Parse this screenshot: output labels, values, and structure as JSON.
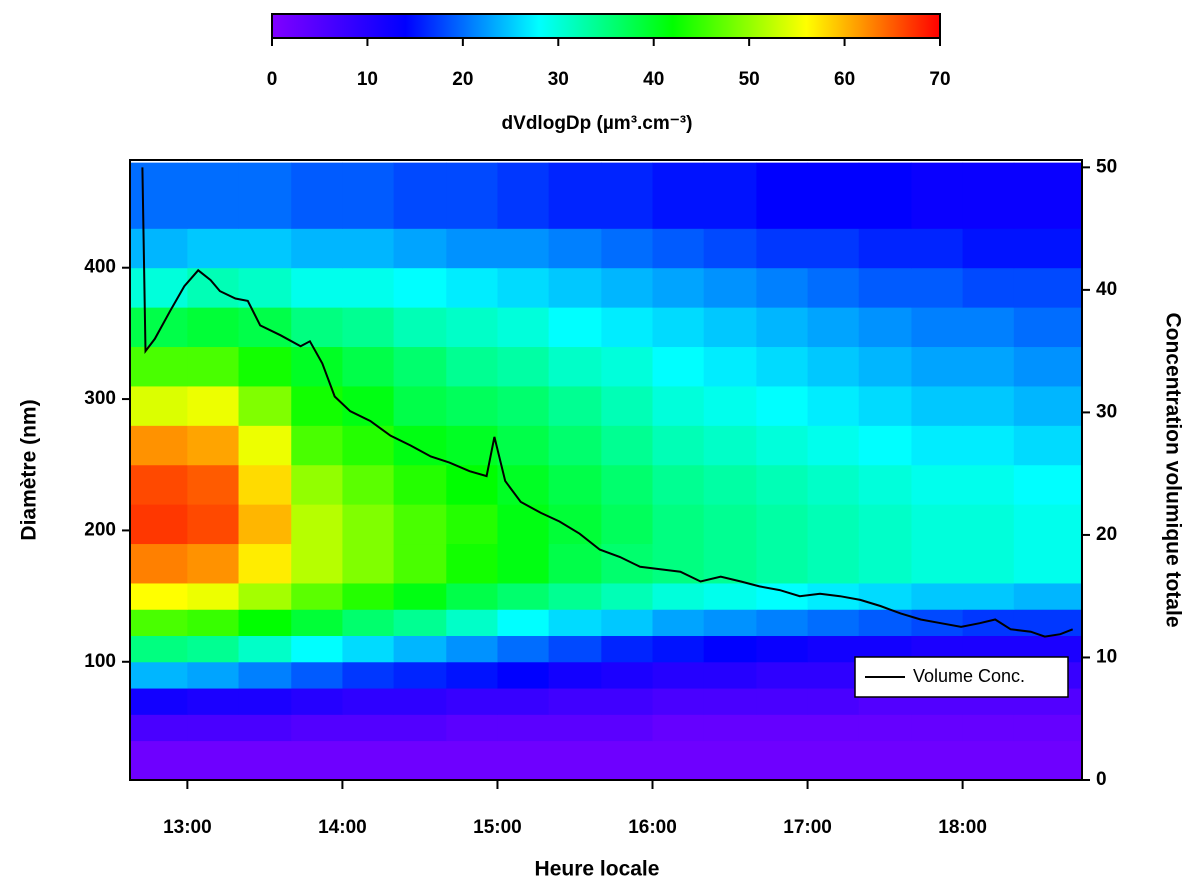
{
  "chart_data": {
    "type": "heatmap",
    "colorbar_label": "dVdlogDp (µm³.cm⁻³)",
    "xlabel": "Heure locale",
    "ylabel": "Diamètre (nm)",
    "y2label": "Concentration volumique totale",
    "colorscale": [
      "#8000ff",
      "#0000ff",
      "#00ffff",
      "#00ff00",
      "#ffff00",
      "#ff0000"
    ],
    "zlim": [
      0,
      70
    ],
    "zticks": [
      0,
      10,
      20,
      30,
      40,
      50,
      60,
      70
    ],
    "xlim": [
      12.63,
      18.77
    ],
    "xticks": [
      {
        "value": 13,
        "label": "13:00"
      },
      {
        "value": 14,
        "label": "14:00"
      },
      {
        "value": 15,
        "label": "15:00"
      },
      {
        "value": 16,
        "label": "16:00"
      },
      {
        "value": 17,
        "label": "17:00"
      },
      {
        "value": 18,
        "label": "18:00"
      }
    ],
    "ylim": [
      10,
      482
    ],
    "yticks": [
      100,
      200,
      300,
      400
    ],
    "y2lim": [
      0,
      50.6
    ],
    "y2ticks": [
      0,
      10,
      20,
      30,
      40,
      50
    ],
    "x_edges": [
      12.63,
      13.0,
      13.33,
      13.67,
      14.0,
      14.33,
      14.67,
      15.0,
      15.33,
      15.67,
      16.0,
      16.33,
      16.67,
      17.0,
      17.33,
      17.67,
      18.0,
      18.33,
      18.77
    ],
    "y_edges": [
      10,
      40,
      60,
      80,
      100,
      120,
      140,
      160,
      190,
      220,
      250,
      280,
      310,
      340,
      370,
      400,
      430,
      480
    ],
    "z": [
      [
        2,
        2,
        2,
        2,
        2,
        2,
        2,
        2,
        2,
        2,
        2,
        2,
        2,
        2,
        2,
        2,
        2,
        2
      ],
      [
        6,
        6,
        6,
        5,
        5,
        5,
        4,
        4,
        4,
        4,
        3,
        3,
        3,
        3,
        3,
        3,
        3,
        3
      ],
      [
        12,
        11,
        11,
        10,
        9,
        9,
        8,
        8,
        7,
        7,
        6,
        6,
        6,
        6,
        5,
        5,
        5,
        5
      ],
      [
        24,
        23,
        21,
        19,
        17,
        16,
        15,
        14,
        12,
        11,
        10,
        10,
        9,
        9,
        9,
        8,
        8,
        8
      ],
      [
        35,
        34,
        31,
        28,
        26,
        24,
        22,
        20,
        18,
        16,
        15,
        14,
        13,
        12,
        12,
        11,
        11,
        11
      ],
      [
        46,
        45,
        42,
        39,
        36,
        34,
        31,
        28,
        26,
        25,
        23,
        22,
        21,
        20,
        19,
        18,
        17,
        17
      ],
      [
        56,
        55,
        51,
        47,
        44,
        41,
        38,
        36,
        34,
        32,
        30,
        29,
        28,
        27,
        26,
        25,
        25,
        24
      ],
      [
        63,
        62,
        57,
        52,
        49,
        46,
        43,
        41,
        38,
        36,
        35,
        34,
        33,
        32,
        31,
        30,
        30,
        29
      ],
      [
        67,
        66,
        60,
        52,
        49,
        46,
        44,
        41,
        39,
        37,
        35,
        34,
        33,
        32,
        31,
        30,
        30,
        29
      ],
      [
        66,
        65,
        58,
        50,
        47,
        44,
        42,
        40,
        38,
        36,
        34,
        33,
        32,
        31,
        30,
        29,
        29,
        28
      ],
      [
        62,
        61,
        55,
        46,
        44,
        41,
        40,
        38,
        36,
        34,
        32,
        31,
        30,
        29,
        28,
        27,
        27,
        26
      ],
      [
        54,
        55,
        49,
        43,
        41,
        38,
        37,
        36,
        34,
        32,
        30,
        29,
        28,
        27,
        26,
        25,
        25,
        24
      ],
      [
        46,
        46,
        43,
        40,
        38,
        36,
        34,
        33,
        31,
        30,
        28,
        27,
        26,
        25,
        24,
        23,
        23,
        22
      ],
      [
        38,
        39,
        38,
        35,
        34,
        32,
        31,
        30,
        28,
        27,
        26,
        25,
        24,
        23,
        22,
        21,
        21,
        20
      ],
      [
        30,
        32,
        31,
        29,
        29,
        28,
        27,
        26,
        25,
        24,
        23,
        22,
        21,
        20,
        19,
        19,
        18,
        18
      ],
      [
        24,
        25,
        25,
        24,
        24,
        23,
        22,
        22,
        21,
        20,
        19,
        18,
        17,
        17,
        16,
        16,
        15,
        15
      ],
      [
        20,
        20,
        20,
        19,
        19,
        18,
        18,
        17,
        16,
        16,
        15,
        15,
        14,
        14,
        14,
        13,
        13,
        13
      ]
    ],
    "series": [
      {
        "name": "Volume Conc.",
        "color": "#000000",
        "axis": "y2",
        "x": [
          12.71,
          12.73,
          12.79,
          12.89,
          12.98,
          13.07,
          13.15,
          13.21,
          13.31,
          13.39,
          13.47,
          13.6,
          13.73,
          13.79,
          13.87,
          13.95,
          14.05,
          14.18,
          14.31,
          14.44,
          14.57,
          14.69,
          14.82,
          14.93,
          14.98,
          15.05,
          15.15,
          15.28,
          15.4,
          15.53,
          15.66,
          15.79,
          15.92,
          16.05,
          16.18,
          16.31,
          16.44,
          16.57,
          16.69,
          16.82,
          16.95,
          17.08,
          17.21,
          17.34,
          17.47,
          17.6,
          17.73,
          17.86,
          17.99,
          18.11,
          18.21,
          18.31,
          18.44,
          18.53,
          18.63,
          18.71
        ],
        "values": [
          50.0,
          35.0,
          36.0,
          38.3,
          40.3,
          41.6,
          40.8,
          39.9,
          39.3,
          39.1,
          37.1,
          36.3,
          35.4,
          35.8,
          34.0,
          31.3,
          30.1,
          29.3,
          28.1,
          27.3,
          26.4,
          25.9,
          25.2,
          24.8,
          28.0,
          24.4,
          22.7,
          21.8,
          21.1,
          20.1,
          18.8,
          18.2,
          17.4,
          17.2,
          17.0,
          16.2,
          16.6,
          16.2,
          15.8,
          15.5,
          15.0,
          15.2,
          15.0,
          14.7,
          14.2,
          13.6,
          13.1,
          12.8,
          12.5,
          12.8,
          13.1,
          12.3,
          12.1,
          11.7,
          11.9,
          12.3
        ]
      }
    ],
    "legend": "lower right"
  }
}
